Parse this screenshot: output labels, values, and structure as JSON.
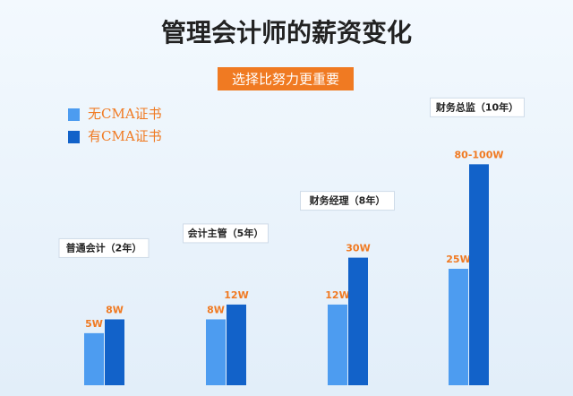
{
  "chart_data": {
    "type": "bar",
    "title": "管理会计师的薪资变化",
    "subtitle": "选择比努力更重要",
    "categories": [
      "普通会计（2年）",
      "会计主管（5年）",
      "财务经理（8年）",
      "财务总监（10年）"
    ],
    "scale": "sqrt",
    "series": [
      {
        "name": "无CMA证书",
        "color": "#4d9cf0",
        "values": [
          5,
          8,
          12,
          25
        ],
        "value_labels": [
          "5W",
          "8W",
          "12W",
          "25W"
        ]
      },
      {
        "name": "有CMA证书",
        "color": "#1262c9",
        "values": [
          8,
          12,
          30,
          90
        ],
        "value_labels": [
          "8W",
          "12W",
          "30W",
          "80-100W"
        ]
      }
    ]
  }
}
